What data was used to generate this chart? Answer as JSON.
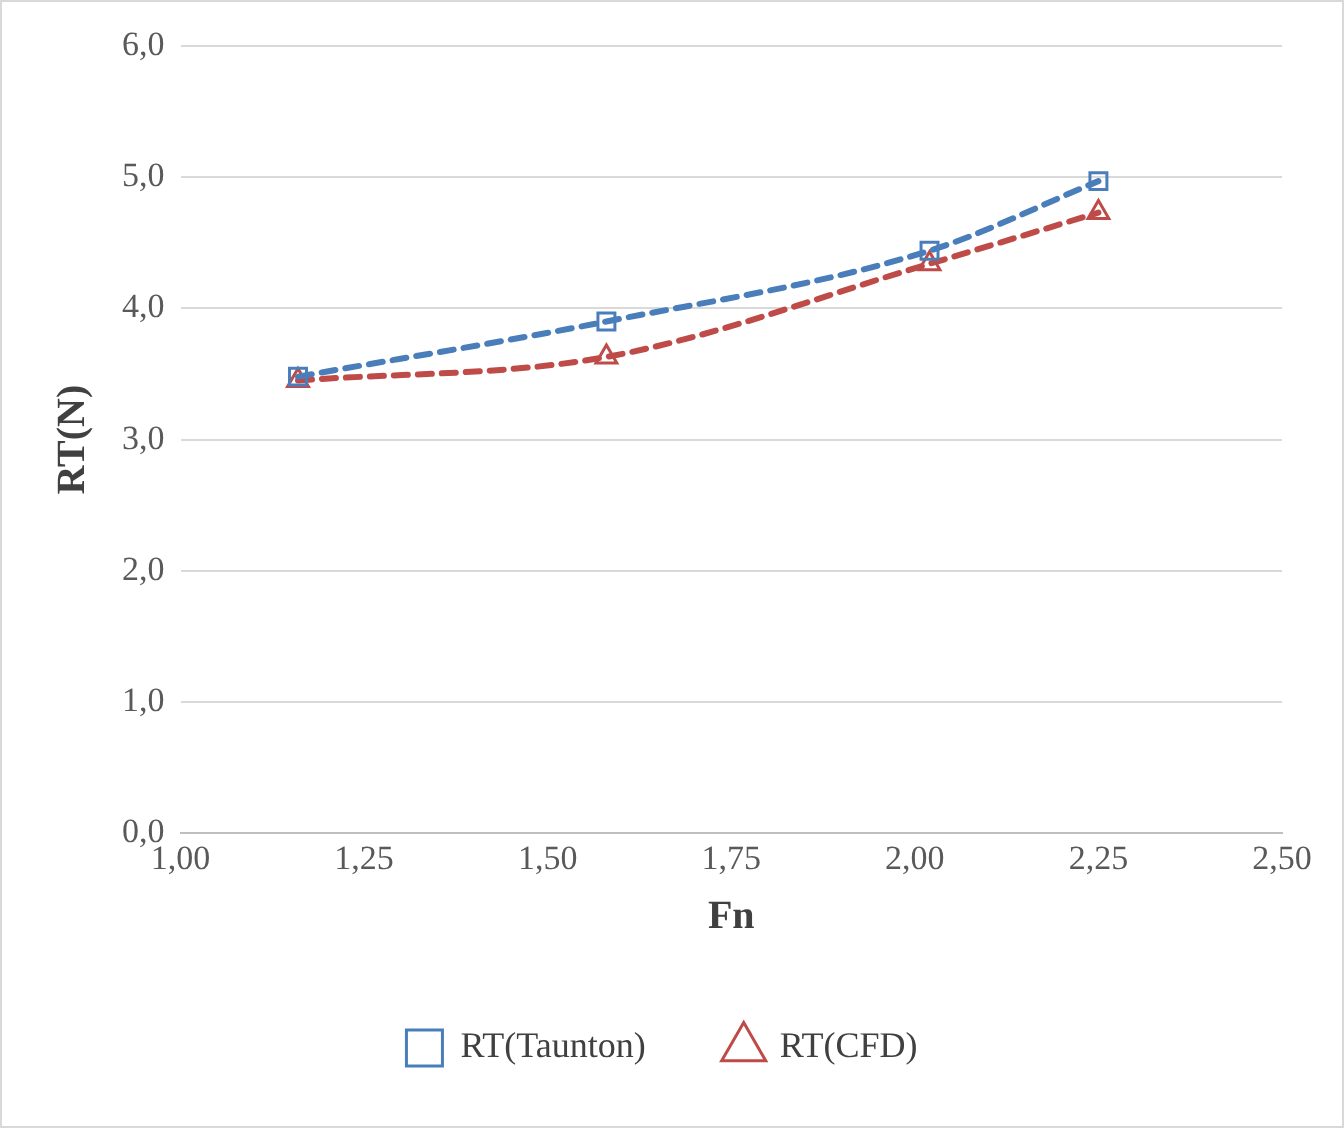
{
  "chart_data": {
    "type": "line",
    "xlabel": "Fn",
    "ylabel": "RT(N)",
    "x": [
      1.16,
      1.58,
      2.02,
      2.25
    ],
    "series": [
      {
        "name": "RT(Taunton)",
        "color": "#4a7ebb",
        "values": [
          3.48,
          3.9,
          4.44,
          4.97
        ],
        "marker": "square"
      },
      {
        "name": "RT(CFD)",
        "color": "#be4b48",
        "values": [
          3.45,
          3.63,
          4.34,
          4.73
        ],
        "marker": "triangle"
      }
    ],
    "xlim": [
      1,
      2.5
    ],
    "xticks": [
      {
        "value": 1,
        "label": "1,00"
      },
      {
        "value": 1.25,
        "label": "1,25"
      },
      {
        "value": 1.5,
        "label": "1,50"
      },
      {
        "value": 1.75,
        "label": "1,75"
      },
      {
        "value": 2,
        "label": "2,00"
      },
      {
        "value": 2.25,
        "label": "2,25"
      },
      {
        "value": 2.5,
        "label": "2,50"
      }
    ],
    "ylim": [
      0,
      6
    ],
    "yticks": [
      {
        "value": 0,
        "label": "0,0"
      },
      {
        "value": 1,
        "label": "1,0"
      },
      {
        "value": 2,
        "label": "2,0"
      },
      {
        "value": 3,
        "label": "3,0"
      },
      {
        "value": 4,
        "label": "4,0"
      },
      {
        "value": 5,
        "label": "5,0"
      },
      {
        "value": 6,
        "label": "6,0"
      }
    ],
    "grid": "y",
    "legend": "bottom",
    "line_style": "dashed"
  }
}
